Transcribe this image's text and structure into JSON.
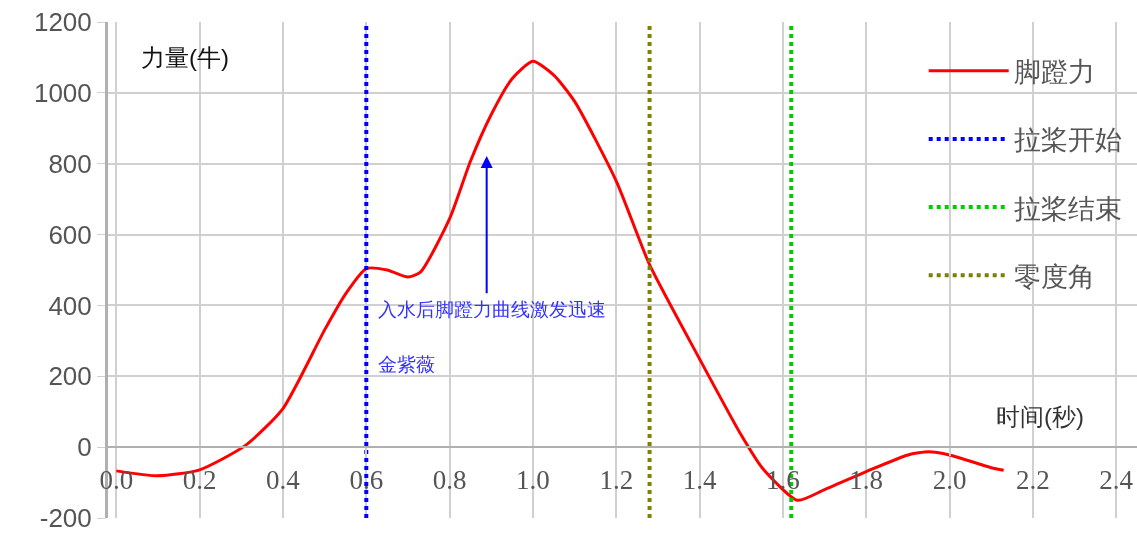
{
  "chart_data": {
    "type": "line",
    "ylabel": "力量(牛)",
    "xlabel": "时间(秒)",
    "x": [
      0.0,
      0.1,
      0.2,
      0.31,
      0.4,
      0.5,
      0.55,
      0.6,
      0.65,
      0.7,
      0.73,
      0.8,
      0.85,
      0.9,
      0.95,
      1.0,
      1.05,
      1.1,
      1.2,
      1.28,
      1.4,
      1.5,
      1.55,
      1.635,
      1.7,
      1.8,
      1.9,
      1.95,
      2.0,
      2.1,
      2.13
    ],
    "series": [
      {
        "name": "脚蹬力",
        "color": "#ff0000",
        "line_style": "solid",
        "values": [
          -67,
          -81,
          -64,
          5,
          109,
          331,
          432,
          504,
          500,
          480,
          494,
          645,
          807,
          939,
          1040,
          1089,
          1050,
          976,
          751,
          515,
          249,
          34,
          -58,
          -150,
          -120,
          -69,
          -22,
          -13,
          -22,
          -58,
          -65
        ]
      },
      {
        "name": "拉桨开始",
        "color": "#0000ff",
        "line_style": "dotted",
        "x": [
          0.6,
          0.6
        ],
        "values": [
          -200,
          1200
        ]
      },
      {
        "name": "拉桨结束",
        "color": "#00cc00",
        "line_style": "dotted",
        "x": [
          1.62,
          1.62
        ],
        "values": [
          -200,
          1200
        ]
      },
      {
        "name": "零度角",
        "color": "#808000",
        "line_style": "dotted",
        "x": [
          1.28,
          1.28
        ],
        "values": [
          -200,
          1200
        ]
      }
    ],
    "annotations": [
      "入水后脚蹬力曲线激发迅速",
      "金紫薇"
    ],
    "xlim": [
      -0.02,
      2.45
    ],
    "ylim": [
      -200,
      1200
    ],
    "xticks": [
      {
        "value": 0,
        "label": "0.0"
      },
      0.2,
      0.4,
      0.6,
      0.8,
      {
        "value": 1,
        "label": "1.0"
      },
      1.2,
      1.4,
      1.6,
      1.8,
      {
        "value": 2,
        "label": "2.0"
      },
      2.2,
      2.4
    ],
    "yticks": [
      -200,
      0,
      200,
      400,
      600,
      800,
      1000,
      1200
    ],
    "grid": true,
    "legend": "top right",
    "marker": "none"
  }
}
